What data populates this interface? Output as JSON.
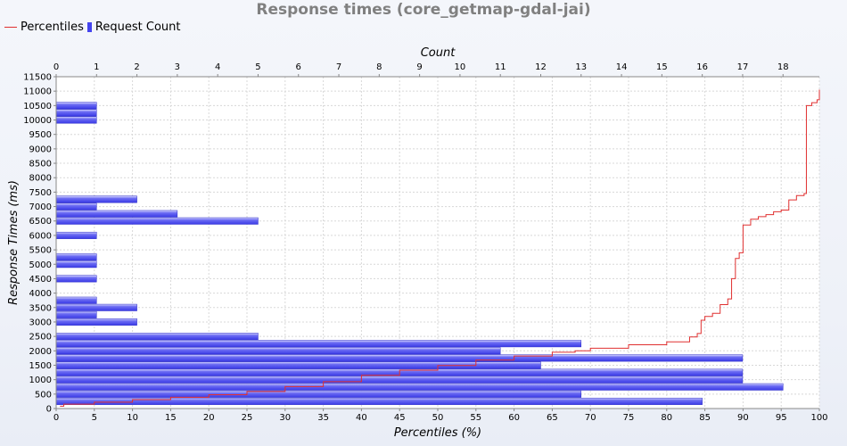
{
  "chart_data": {
    "title": "Response times (core_getmap-gdal-jai)",
    "type": "bar+line",
    "legend": {
      "placement": "top-left",
      "items": [
        {
          "label": "Percentiles",
          "kind": "line",
          "color": "#e03030"
        },
        {
          "label": "Request Count",
          "kind": "bar",
          "color": "#4444ee"
        }
      ]
    },
    "xlabel_bottom": "Percentiles (%)",
    "xlabel_top": "Count",
    "ylabel": "Response Times (ms)",
    "x_bottom_range": [
      0,
      100
    ],
    "x_top_range": [
      0,
      18.9
    ],
    "y_range": [
      0,
      11500
    ],
    "grid": true,
    "bottom_ticks": [
      "0",
      "5",
      "10",
      "15",
      "20",
      "25",
      "30",
      "35",
      "40",
      "45",
      "50",
      "55",
      "60",
      "65",
      "70",
      "75",
      "80",
      "85",
      "90",
      "95",
      "100"
    ],
    "top_ticks": [
      "0",
      "1",
      "2",
      "3",
      "4",
      "5",
      "6",
      "7",
      "8",
      "9",
      "10",
      "11",
      "12",
      "13",
      "14",
      "15",
      "16",
      "17",
      "18"
    ],
    "y_ticks": [
      "0",
      "500",
      "1000",
      "1500",
      "2000",
      "2500",
      "3000",
      "3500",
      "4000",
      "4500",
      "5000",
      "5500",
      "6000",
      "6500",
      "7000",
      "7500",
      "8000",
      "8500",
      "9000",
      "9500",
      "10000",
      "10500",
      "11000",
      "11500"
    ],
    "bars": [
      {
        "y": 250,
        "count": 16
      },
      {
        "y": 500,
        "count": 13
      },
      {
        "y": 750,
        "count": 18
      },
      {
        "y": 1000,
        "count": 17
      },
      {
        "y": 1250,
        "count": 17
      },
      {
        "y": 1500,
        "count": 12
      },
      {
        "y": 1750,
        "count": 17
      },
      {
        "y": 2000,
        "count": 11
      },
      {
        "y": 2250,
        "count": 13
      },
      {
        "y": 2500,
        "count": 5
      },
      {
        "y": 3000,
        "count": 2
      },
      {
        "y": 3250,
        "count": 1
      },
      {
        "y": 3500,
        "count": 2
      },
      {
        "y": 3750,
        "count": 1
      },
      {
        "y": 4500,
        "count": 1
      },
      {
        "y": 5000,
        "count": 1
      },
      {
        "y": 5250,
        "count": 1
      },
      {
        "y": 6000,
        "count": 1
      },
      {
        "y": 6500,
        "count": 5
      },
      {
        "y": 6750,
        "count": 3
      },
      {
        "y": 7000,
        "count": 1
      },
      {
        "y": 7250,
        "count": 2
      },
      {
        "y": 10000,
        "count": 1
      },
      {
        "y": 10250,
        "count": 1
      },
      {
        "y": 10500,
        "count": 1
      }
    ],
    "percentiles": [
      [
        0.5,
        80
      ],
      [
        1,
        150
      ],
      [
        5,
        220
      ],
      [
        10,
        310
      ],
      [
        15,
        390
      ],
      [
        20,
        480
      ],
      [
        25,
        590
      ],
      [
        30,
        760
      ],
      [
        35,
        930
      ],
      [
        40,
        1150
      ],
      [
        45,
        1330
      ],
      [
        50,
        1490
      ],
      [
        55,
        1680
      ],
      [
        60,
        1820
      ],
      [
        65,
        1950
      ],
      [
        68,
        2000
      ],
      [
        70,
        2090
      ],
      [
        75,
        2210
      ],
      [
        80,
        2310
      ],
      [
        83,
        2480
      ],
      [
        84,
        2600
      ],
      [
        84.5,
        3060
      ],
      [
        85,
        3190
      ],
      [
        86,
        3300
      ],
      [
        87,
        3600
      ],
      [
        88,
        3800
      ],
      [
        88.5,
        4500
      ],
      [
        89,
        5200
      ],
      [
        89.5,
        5400
      ],
      [
        90,
        6360
      ],
      [
        91,
        6560
      ],
      [
        92,
        6650
      ],
      [
        93,
        6720
      ],
      [
        94,
        6820
      ],
      [
        95,
        6880
      ],
      [
        96,
        7230
      ],
      [
        97,
        7380
      ],
      [
        98,
        7450
      ],
      [
        98.3,
        10500
      ],
      [
        99,
        10600
      ],
      [
        99.7,
        10700
      ],
      [
        100,
        11050
      ]
    ]
  }
}
